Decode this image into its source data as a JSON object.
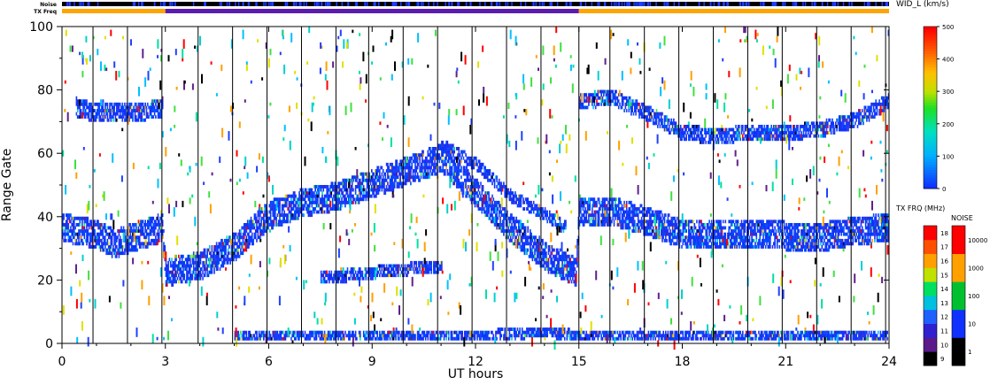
{
  "chart_data": {
    "type": "heatmap",
    "title": "",
    "xlabel": "UT hours",
    "ylabel": "Range Gate",
    "xlim": [
      0,
      24
    ],
    "ylim": [
      0,
      100
    ],
    "x_ticks": [
      "0",
      "3",
      "6",
      "9",
      "12",
      "15",
      "18",
      "21",
      "24"
    ],
    "y_ticks": [
      "0",
      "20",
      "40",
      "60",
      "80",
      "100"
    ],
    "top_bars": {
      "noise_label": "Noise",
      "txfreq_label": "TX Freq",
      "txfreq_segments": [
        {
          "from": 0,
          "to": 3,
          "color": "#ffa500"
        },
        {
          "from": 3,
          "to": 15,
          "color": "#5a1cb0"
        },
        {
          "from": 15,
          "to": 24,
          "color": "#ffa500"
        }
      ]
    },
    "scan_boundaries_ut": [
      0.9,
      1.9,
      2.9,
      3.95,
      4.95,
      5.95,
      6.95,
      7.95,
      8.9,
      9.9,
      10.9,
      11.9,
      12.9,
      13.9,
      15.0,
      15.9,
      16.9,
      17.9,
      18.9,
      19.9,
      20.9,
      21.9,
      22.9,
      23.9
    ],
    "velocity_scale": {
      "label": "WID_L (km/s)",
      "ticks": [
        "0",
        "100",
        "200",
        "300",
        "400",
        "500"
      ],
      "min": 0,
      "max": 500
    },
    "txfreq_scale": {
      "label": "TX FRQ (MHz)",
      "ticks": [
        "9",
        "10",
        "11",
        "12",
        "13",
        "14",
        "15",
        "16",
        "17",
        "18"
      ],
      "colors": [
        "#000000",
        "#5a1a8a",
        "#3020d0",
        "#2060ff",
        "#00c0e0",
        "#00e060",
        "#c0e000",
        "#ffa000",
        "#ff5000",
        "#ff0000"
      ]
    },
    "noise_scale": {
      "label": "NOISE",
      "ticks": [
        "1",
        "10",
        "100",
        "1000",
        "10000"
      ],
      "colors": [
        "#000000",
        "#1030ff",
        "#00c030",
        "#ffa000",
        "#ff0000"
      ]
    },
    "echo_bands": [
      {
        "name": "main",
        "points": [
          [
            0,
            36
          ],
          [
            1,
            34
          ],
          [
            1.5,
            31
          ],
          [
            2.9,
            36
          ],
          [
            3.0,
            22
          ],
          [
            4,
            24
          ],
          [
            5,
            30
          ],
          [
            6,
            40
          ],
          [
            7,
            44
          ],
          [
            8,
            46
          ],
          [
            9,
            50
          ],
          [
            10,
            54
          ],
          [
            11,
            58
          ],
          [
            12,
            47
          ],
          [
            13,
            36
          ],
          [
            14,
            27
          ],
          [
            14.9,
            22
          ],
          [
            15.0,
            41
          ],
          [
            16,
            41
          ],
          [
            17,
            38
          ],
          [
            18,
            34
          ],
          [
            20,
            34
          ],
          [
            22,
            33
          ],
          [
            23,
            35
          ],
          [
            24,
            36
          ]
        ],
        "half_width": 4
      },
      {
        "name": "lower",
        "points": [
          [
            7.5,
            20
          ],
          [
            9,
            22
          ],
          [
            10,
            23
          ],
          [
            11,
            24
          ]
        ],
        "half_width": 1.5
      },
      {
        "name": "upper-early",
        "points": [
          [
            0.4,
            74
          ],
          [
            1,
            72
          ],
          [
            2,
            72
          ],
          [
            2.9,
            74
          ]
        ],
        "half_width": 2.5
      },
      {
        "name": "upper-late",
        "points": [
          [
            15.0,
            76
          ],
          [
            16,
            77
          ],
          [
            17,
            72
          ],
          [
            18,
            66
          ],
          [
            19,
            65
          ],
          [
            20,
            66
          ],
          [
            21,
            66
          ],
          [
            22,
            67
          ],
          [
            23,
            70
          ],
          [
            24,
            76
          ]
        ],
        "half_width": 2
      },
      {
        "name": "descending-arc",
        "points": [
          [
            11,
            62
          ],
          [
            12,
            56
          ],
          [
            13,
            46
          ],
          [
            14,
            40
          ],
          [
            14.6,
            36
          ]
        ],
        "half_width": 1.5
      },
      {
        "name": "ground",
        "points": [
          [
            5,
            2
          ],
          [
            8,
            2
          ],
          [
            10,
            2
          ],
          [
            12,
            2
          ],
          [
            14,
            3
          ],
          [
            15,
            2
          ],
          [
            18,
            2
          ],
          [
            20,
            2
          ],
          [
            22,
            2
          ],
          [
            24,
            2
          ]
        ],
        "half_width": 1.2
      }
    ]
  }
}
